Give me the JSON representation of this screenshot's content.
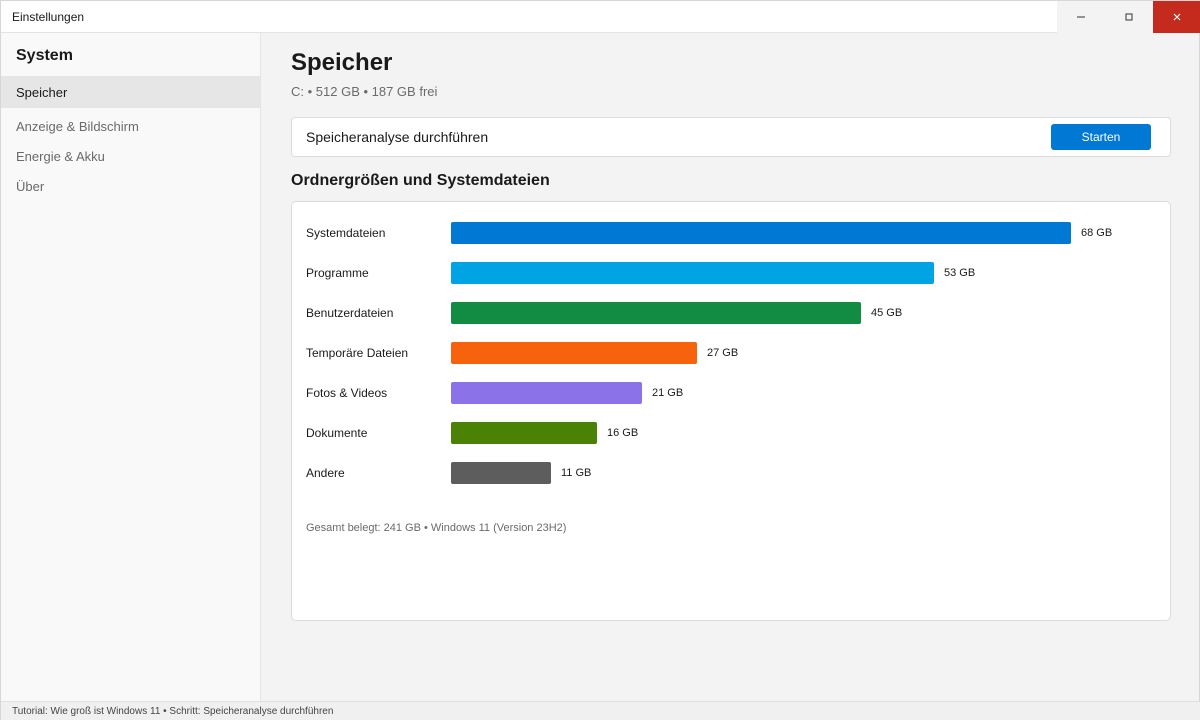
{
  "window": {
    "title": "Einstellungen",
    "controls": {
      "minimize": "–",
      "maximize": "◻",
      "close": "✕"
    }
  },
  "sidebar": {
    "title": "System",
    "items": [
      {
        "label": "Speicher",
        "active": true
      },
      {
        "label": "Anzeige & Bildschirm",
        "active": false
      },
      {
        "label": "Energie & Akku",
        "active": false
      },
      {
        "label": "Über",
        "active": false
      }
    ]
  },
  "main": {
    "title": "Speicher",
    "subtitle": "C: • 512 GB • 187 GB frei",
    "analyze": {
      "label": "Speicheranalyse durchführen",
      "button": "Starten"
    },
    "section_title": "Ordnergrößen und Systemdateien",
    "footer": "Gesamt belegt: 241 GB • Windows 11 (Version 23H2)"
  },
  "colors": {
    "accent": "#0078d4",
    "close": "#c42b1c"
  },
  "chart_data": {
    "type": "bar",
    "orientation": "horizontal",
    "categories": [
      "Systemdateien",
      "Programme",
      "Benutzerdateien",
      "Temporäre Dateien",
      "Fotos & Videos",
      "Dokumente",
      "Andere"
    ],
    "values": [
      68,
      53,
      45,
      27,
      21,
      16,
      11
    ],
    "value_labels": [
      "68 GB",
      "53 GB",
      "45 GB",
      "27 GB",
      "21 GB",
      "16 GB",
      "11 GB"
    ],
    "unit": "GB",
    "colors": [
      "#0078d4",
      "#00a4e4",
      "#128c43",
      "#f7630c",
      "#8c72e8",
      "#498205",
      "#5d5d5d"
    ]
  },
  "statusbar": {
    "text": "Tutorial: Wie groß ist Windows 11 • Schritt: Speicheranalyse durchführen"
  }
}
